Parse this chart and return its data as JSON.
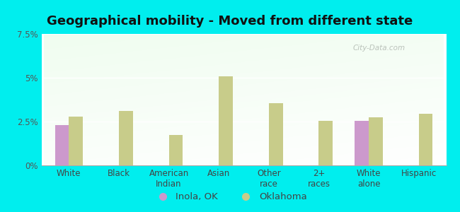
{
  "title": "Geographical mobility - Moved from different state",
  "categories": [
    "White",
    "Black",
    "American\nIndian",
    "Asian",
    "Other\nrace",
    "2+\nraces",
    "White\nalone",
    "Hispanic"
  ],
  "inola_values": [
    2.3,
    0,
    0,
    0,
    0,
    0,
    2.55,
    0
  ],
  "oklahoma_values": [
    2.8,
    3.1,
    1.75,
    5.1,
    3.55,
    2.55,
    2.75,
    2.95
  ],
  "inola_color": "#cc99cc",
  "oklahoma_color": "#c8cc8a",
  "background_color": "#00eeee",
  "ylim": [
    0,
    7.5
  ],
  "yticks": [
    0,
    2.5,
    5.0,
    7.5
  ],
  "ytick_labels": [
    "0%",
    "2.5%",
    "5%",
    "7.5%"
  ],
  "legend_inola": "Inola, OK",
  "legend_oklahoma": "Oklahoma",
  "bar_width": 0.28,
  "title_fontsize": 13,
  "tick_fontsize": 8.5,
  "legend_fontsize": 9.5
}
